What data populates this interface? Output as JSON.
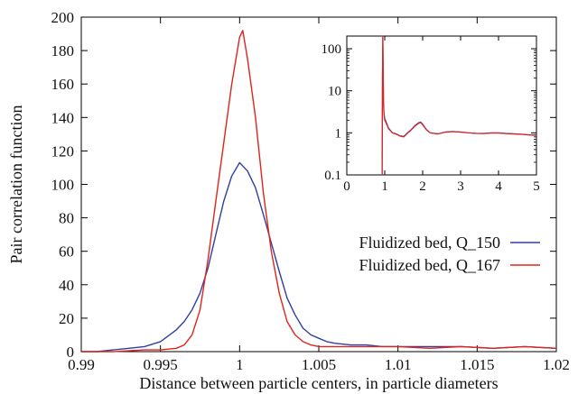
{
  "chart_data": [
    {
      "type": "line",
      "xlabel": "Distance between particle centers, in particle diameters",
      "ylabel": "Pair correlation function",
      "xlim": [
        0.99,
        1.02
      ],
      "ylim": [
        0,
        200
      ],
      "xticks": [
        0.99,
        0.995,
        1,
        1.005,
        1.01,
        1.015,
        1.02
      ],
      "xtick_labels": [
        "0.99",
        "0.995",
        "1",
        "1.005",
        "1.01",
        "1.015",
        "1.02"
      ],
      "yticks": [
        0,
        20,
        40,
        60,
        80,
        100,
        120,
        140,
        160,
        180,
        200
      ],
      "ytick_labels": [
        "0",
        "20",
        "40",
        "60",
        "80",
        "100",
        "120",
        "140",
        "160",
        "180",
        "200"
      ],
      "grid": false,
      "legend_position": "center-right",
      "series": [
        {
          "name": "Fluidized bed, Q_150",
          "color": "#2f3fa0",
          "x": [
            0.99,
            0.991,
            0.992,
            0.993,
            0.994,
            0.995,
            0.996,
            0.9965,
            0.997,
            0.9975,
            0.998,
            0.9985,
            0.999,
            0.9995,
            1.0,
            1.0005,
            1.001,
            1.0015,
            1.002,
            1.0025,
            1.003,
            1.0035,
            1.004,
            1.0045,
            1.005,
            1.0055,
            1.006,
            1.007,
            1.008,
            1.009,
            1.01,
            1.012,
            1.014,
            1.016,
            1.018,
            1.02
          ],
          "y": [
            0,
            0,
            1,
            2,
            3,
            6,
            13,
            18,
            25,
            35,
            50,
            70,
            90,
            105,
            113,
            108,
            98,
            82,
            65,
            48,
            32,
            22,
            14,
            10,
            8,
            6,
            5,
            4,
            4,
            3,
            3,
            3,
            3,
            2,
            3,
            2
          ]
        },
        {
          "name": "Fluidized bed, Q_167",
          "color": "#e0231c",
          "x": [
            0.99,
            0.992,
            0.994,
            0.995,
            0.996,
            0.9965,
            0.997,
            0.9975,
            0.998,
            0.9985,
            0.999,
            0.9995,
            1.0,
            1.0002,
            1.0005,
            1.001,
            1.0015,
            1.002,
            1.0025,
            1.003,
            1.0035,
            1.004,
            1.0045,
            1.005,
            1.006,
            1.008,
            1.01,
            1.012,
            1.014,
            1.016,
            1.018,
            1.02
          ],
          "y": [
            0,
            0,
            1,
            1,
            2,
            4,
            10,
            25,
            55,
            90,
            125,
            160,
            188,
            192,
            175,
            140,
            95,
            60,
            35,
            18,
            10,
            6,
            4,
            3,
            3,
            3,
            3,
            2,
            3,
            2,
            3,
            2
          ]
        }
      ]
    },
    {
      "type": "line",
      "placement": "inset top-right",
      "xlim": [
        0,
        5
      ],
      "ylim": [
        0.1,
        200
      ],
      "y_scale": "log",
      "xticks": [
        0,
        1,
        2,
        3,
        4,
        5
      ],
      "xtick_labels": [
        "0",
        "1",
        "2",
        "3",
        "4",
        "5"
      ],
      "yticks": [
        0.1,
        1,
        10,
        100
      ],
      "ytick_labels": [
        "0.1",
        "1",
        "10",
        "100"
      ],
      "series": [
        {
          "color": "#2f3fa0",
          "x": [
            0.93,
            0.935,
            0.94,
            0.95,
            0.96,
            0.97,
            0.98,
            1.0,
            1.05,
            1.1,
            1.2,
            1.3,
            1.4,
            1.5,
            1.6,
            1.7,
            1.8,
            1.9,
            1.95,
            2.0,
            2.1,
            2.2,
            2.4,
            2.6,
            2.8,
            3.0,
            3.2,
            3.4,
            3.6,
            3.8,
            4.0,
            4.2,
            4.4,
            4.6,
            4.8,
            5.0
          ],
          "y": [
            0.1,
            1,
            20,
            190,
            30,
            5,
            3,
            2.2,
            1.7,
            1.3,
            1.0,
            0.95,
            0.85,
            0.82,
            1.0,
            1.2,
            1.5,
            1.75,
            1.8,
            1.6,
            1.2,
            1.0,
            0.95,
            1.05,
            1.08,
            1.05,
            1.0,
            0.98,
            0.97,
            1.0,
            1.0,
            0.97,
            0.95,
            0.93,
            0.9,
            0.88
          ]
        },
        {
          "color": "#e0231c",
          "x": [
            0.93,
            0.935,
            0.94,
            0.95,
            0.96,
            0.97,
            0.98,
            1.0,
            1.05,
            1.1,
            1.2,
            1.3,
            1.4,
            1.5,
            1.6,
            1.7,
            1.8,
            1.9,
            1.95,
            2.0,
            2.1,
            2.2,
            2.4,
            2.6,
            2.8,
            3.0,
            3.2,
            3.4,
            3.6,
            3.8,
            4.0,
            4.2,
            4.4,
            4.6,
            4.8,
            5.0
          ],
          "y": [
            0.1,
            1,
            25,
            200,
            25,
            4.5,
            2.8,
            2.0,
            1.6,
            1.25,
            1.0,
            0.93,
            0.84,
            0.8,
            0.98,
            1.18,
            1.45,
            1.7,
            1.75,
            1.55,
            1.18,
            1.0,
            0.94,
            1.04,
            1.07,
            1.04,
            1.0,
            0.97,
            0.96,
            0.99,
            0.99,
            0.96,
            0.94,
            0.92,
            0.89,
            0.87
          ]
        }
      ]
    }
  ]
}
